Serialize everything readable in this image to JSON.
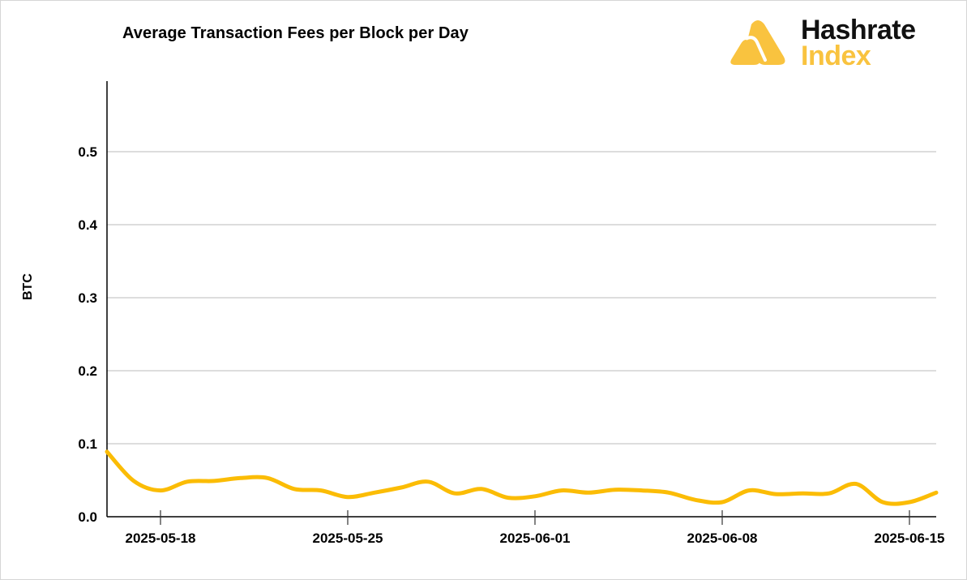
{
  "header": {
    "title": "Average Transaction Fees per Block per Day",
    "logo": {
      "line1": "Hashrate",
      "line2": "Index",
      "icon": "hashrate-index-logo-icon",
      "accent": "#f9c33f"
    }
  },
  "axes": {
    "ylabel": "BTC",
    "yticks": [
      "0.0",
      "0.1",
      "0.2",
      "0.3",
      "0.4",
      "0.5"
    ],
    "xticks": [
      "2025-05-18",
      "2025-05-25",
      "2025-06-01",
      "2025-06-08",
      "2025-06-15"
    ]
  },
  "colors": {
    "line": "#fbbc05",
    "grid": "#dddddd",
    "axis": "#000000"
  },
  "chart_data": {
    "type": "line",
    "title": "Average Transaction Fees per Block per Day",
    "xlabel": "",
    "ylabel": "BTC",
    "ylim": [
      0,
      0.59
    ],
    "grid": {
      "y": true,
      "x": false
    },
    "legend": null,
    "x": [
      "2025-05-16",
      "2025-05-17",
      "2025-05-18",
      "2025-05-19",
      "2025-05-20",
      "2025-05-21",
      "2025-05-22",
      "2025-05-23",
      "2025-05-24",
      "2025-05-25",
      "2025-05-26",
      "2025-05-27",
      "2025-05-28",
      "2025-05-29",
      "2025-05-30",
      "2025-05-31",
      "2025-06-01",
      "2025-06-02",
      "2025-06-03",
      "2025-06-04",
      "2025-06-05",
      "2025-06-06",
      "2025-06-07",
      "2025-06-08",
      "2025-06-09",
      "2025-06-10",
      "2025-06-11",
      "2025-06-12",
      "2025-06-13",
      "2025-06-14",
      "2025-06-15",
      "2025-06-16"
    ],
    "series": [
      {
        "name": "Average Transaction Fees per Block",
        "color": "#fbbc05",
        "values": [
          0.089,
          0.049,
          0.036,
          0.048,
          0.049,
          0.053,
          0.053,
          0.038,
          0.036,
          0.027,
          0.033,
          0.04,
          0.048,
          0.032,
          0.038,
          0.026,
          0.028,
          0.036,
          0.033,
          0.037,
          0.036,
          0.033,
          0.023,
          0.02,
          0.036,
          0.031,
          0.032,
          0.032,
          0.045,
          0.02,
          0.02,
          0.033
        ]
      }
    ],
    "xticks": [
      "2025-05-18",
      "2025-05-25",
      "2025-06-01",
      "2025-06-08",
      "2025-06-15"
    ],
    "yticks": [
      0.0,
      0.1,
      0.2,
      0.3,
      0.4,
      0.5
    ]
  }
}
